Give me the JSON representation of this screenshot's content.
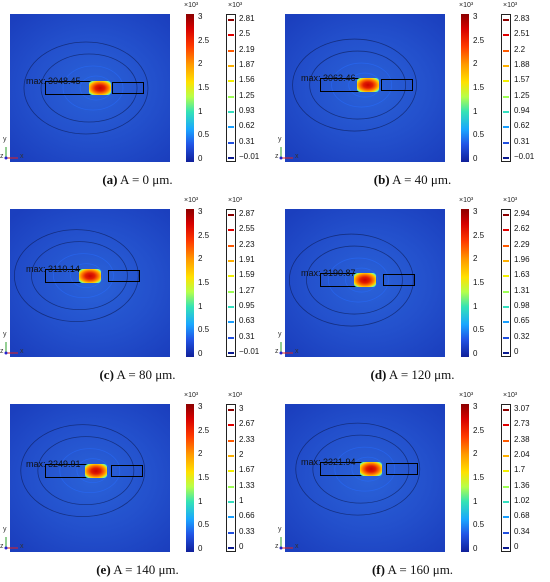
{
  "cbar_exponent": "×10³",
  "panels": [
    {
      "max_label": "max: 3048.45",
      "hot_x": 0.56,
      "hot_y": 0.5,
      "box_x": 0.64,
      "box_w": 0.2,
      "caption_tag": "(a)",
      "caption_text": " A = 0 μm.",
      "cbar_ticks": [
        "3",
        "2.5",
        "2",
        "1.5",
        "1",
        "0.5",
        "0"
      ],
      "levels": [
        "2.81",
        "2.5",
        "2.19",
        "1.87",
        "1.56",
        "1.25",
        "0.93",
        "0.62",
        "0.31",
        "−0.01"
      ]
    },
    {
      "max_label": "max: 3063.46",
      "hot_x": 0.52,
      "hot_y": 0.48,
      "box_x": 0.6,
      "box_w": 0.2,
      "caption_tag": "(b)",
      "caption_text": " A = 40 μm.",
      "cbar_ticks": [
        "3",
        "2.5",
        "2",
        "1.5",
        "1",
        "0.5",
        "0"
      ],
      "levels": [
        "2.83",
        "2.51",
        "2.2",
        "1.88",
        "1.57",
        "1.25",
        "0.94",
        "0.62",
        "0.31",
        "−0.01"
      ]
    },
    {
      "max_label": "max: 3110.14",
      "hot_x": 0.5,
      "hot_y": 0.45,
      "box_x": 0.61,
      "box_w": 0.2,
      "caption_tag": "(c)",
      "caption_text": " A = 80 μm.",
      "cbar_ticks": [
        "3",
        "2.5",
        "2",
        "1.5",
        "1",
        "0.5",
        "0"
      ],
      "levels": [
        "2.87",
        "2.55",
        "2.23",
        "1.91",
        "1.59",
        "1.27",
        "0.95",
        "0.63",
        "0.31",
        "−0.01"
      ]
    },
    {
      "max_label": "max: 3190.87",
      "hot_x": 0.5,
      "hot_y": 0.48,
      "box_x": 0.61,
      "box_w": 0.2,
      "caption_tag": "(d)",
      "caption_text": " A = 120 μm.",
      "cbar_ticks": [
        "3",
        "2.5",
        "2",
        "1.5",
        "1",
        "0.5",
        "0"
      ],
      "levels": [
        "2.94",
        "2.62",
        "2.29",
        "1.96",
        "1.63",
        "1.31",
        "0.98",
        "0.65",
        "0.32",
        "0"
      ]
    },
    {
      "max_label": "max: 3249.91",
      "hot_x": 0.54,
      "hot_y": 0.45,
      "box_x": 0.63,
      "box_w": 0.2,
      "caption_tag": "(e)",
      "caption_text": " A = 140 μm.",
      "cbar_ticks": [
        "3",
        "2.5",
        "2",
        "1.5",
        "1",
        "0.5",
        "0"
      ],
      "levels": [
        "3",
        "2.67",
        "2.33",
        "2",
        "1.67",
        "1.33",
        "1",
        "0.66",
        "0.33",
        "0"
      ]
    },
    {
      "max_label": "max: 3321.94",
      "hot_x": 0.54,
      "hot_y": 0.44,
      "box_x": 0.63,
      "box_w": 0.2,
      "caption_tag": "(f)",
      "caption_text": " A = 160 μm.",
      "cbar_ticks": [
        "3",
        "2.5",
        "2",
        "1.5",
        "1",
        "0.5",
        "0"
      ],
      "levels": [
        "3.07",
        "2.73",
        "2.38",
        "2.04",
        "1.7",
        "1.36",
        "1.02",
        "0.68",
        "0.34",
        "0"
      ]
    }
  ],
  "axis": {
    "y": "y",
    "z": "z",
    "x": "x"
  }
}
